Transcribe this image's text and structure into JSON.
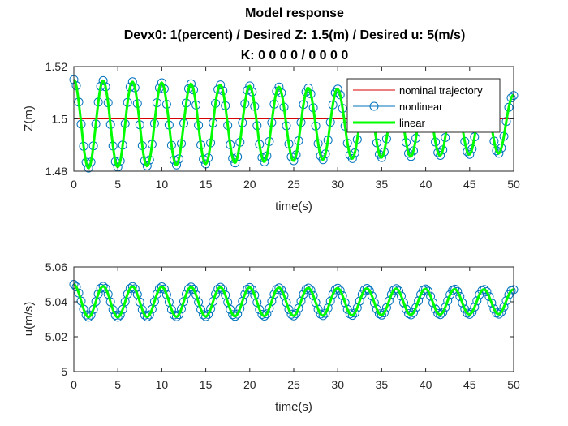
{
  "figure": {
    "title_lines": [
      "Model response",
      "Devx0: 1(percent) / Desired Z: 1.5(m) / Desired u: 5(m/s)",
      "K: 0  0  0  0 / 0  0  0  0"
    ]
  },
  "colors": {
    "nominal": "#d90000",
    "nonlinear": "#0072bd",
    "linear": "#00ff00",
    "axis": "#262626"
  },
  "chart_data": [
    {
      "type": "line",
      "xlabel": "time(s)",
      "ylabel": "Z(m)",
      "xlim": [
        0,
        50
      ],
      "ylim": [
        1.48,
        1.52
      ],
      "xticks": [
        0,
        5,
        10,
        15,
        20,
        25,
        30,
        35,
        40,
        45,
        50
      ],
      "yticks": [
        1.48,
        1.5,
        1.52
      ],
      "ytick_labels": [
        "1.48",
        "1.5",
        "1.52"
      ],
      "grid": false,
      "legend_position": "top-right",
      "legend": [
        "nominal trajectory",
        "nonlinear",
        "linear"
      ],
      "series": [
        {
          "name": "nominal trajectory",
          "style": "thin-line",
          "constant": 1.5
        },
        {
          "name": "nonlinear",
          "style": "circles",
          "start": 1.515,
          "offset": 1.498,
          "amp_start": 0.017,
          "amp_end": 0.011,
          "period": 3.33
        },
        {
          "name": "linear",
          "style": "thick-line",
          "start": 1.515,
          "offset": 1.498,
          "amp_start": 0.017,
          "amp_end": 0.011,
          "period": 3.33
        }
      ]
    },
    {
      "type": "line",
      "xlabel": "time(s)",
      "ylabel": "u(m/s)",
      "xlim": [
        0,
        50
      ],
      "ylim": [
        5,
        5.06
      ],
      "xticks": [
        0,
        5,
        10,
        15,
        20,
        25,
        30,
        35,
        40,
        45,
        50
      ],
      "yticks": [
        5,
        5.02,
        5.04,
        5.06
      ],
      "ytick_labels": [
        "5",
        "5.02",
        "5.04",
        "5.06"
      ],
      "grid": false,
      "series": [
        {
          "name": "nominal trajectory",
          "style": "thin-line",
          "constant": 5.0
        },
        {
          "name": "nonlinear",
          "style": "circles",
          "start": 5.05,
          "offset": 5.04,
          "amp_start": 0.009,
          "amp_end": 0.007,
          "period": 3.33
        },
        {
          "name": "linear",
          "style": "thick-line",
          "start": 5.05,
          "offset": 5.04,
          "amp_start": 0.009,
          "amp_end": 0.007,
          "period": 3.33
        }
      ]
    }
  ]
}
